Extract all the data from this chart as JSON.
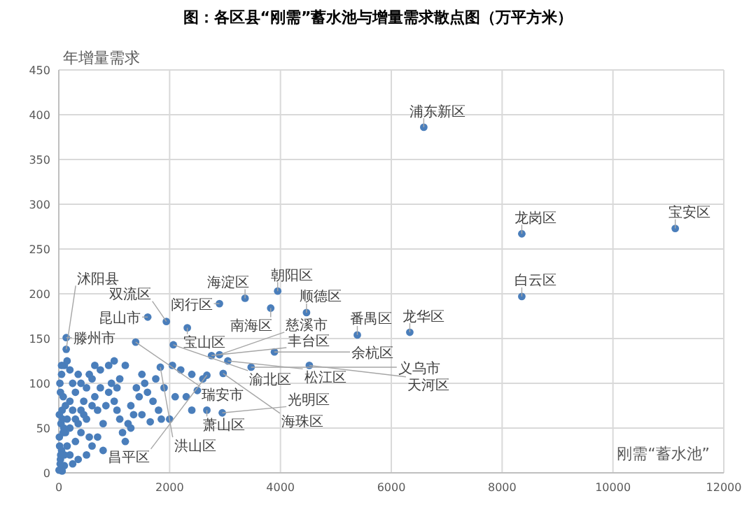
{
  "chart_data": {
    "type": "scatter",
    "title": "图：各区县“刚需”蓄水池与增量需求散点图（万平方米）",
    "xlabel": "刚需“蓄水池”",
    "ylabel": "年增量需求",
    "xlim": [
      0,
      12000
    ],
    "ylim": [
      0,
      450
    ],
    "xticks": [
      0,
      2000,
      4000,
      6000,
      8000,
      10000,
      12000
    ],
    "yticks": [
      0,
      50,
      100,
      150,
      200,
      250,
      300,
      350,
      400,
      450
    ],
    "grid": true,
    "marker": "circle",
    "series": [
      {
        "color": "#4a7ebb",
        "x": [
          6586,
          8355,
          11124,
          8355,
          6334,
          5387,
          4470,
          3824,
          3950,
          3361,
          2899,
          2319,
          1941,
          1605,
          134,
          134,
          1387,
          2067,
          2756,
          2899,
          3050,
          3891,
          2672,
          3471,
          4521,
          2966,
          2672,
          2950,
          1832,
          30,
          50,
          10,
          40,
          60,
          80,
          20,
          50,
          100,
          150,
          30,
          70,
          120,
          150,
          200,
          250,
          100,
          60,
          200,
          250,
          300,
          350,
          400,
          450,
          500,
          550,
          600,
          300,
          350,
          400,
          450,
          500,
          550,
          600,
          650,
          700,
          750,
          800,
          850,
          900,
          950,
          1000,
          1050,
          1100,
          1150,
          1200,
          1250,
          1300,
          1350,
          1400,
          1450,
          1500,
          1550,
          1600,
          1700,
          1800,
          1900,
          2000,
          2100,
          2200,
          2300,
          2400,
          2500,
          2600,
          1650,
          1100,
          1000,
          900,
          1200,
          750,
          650,
          200,
          250,
          150,
          100,
          350,
          500,
          700,
          800,
          1050,
          1300,
          1500,
          1750,
          1850,
          2050,
          2400,
          600,
          400,
          300,
          200,
          50,
          10,
          15,
          25,
          80,
          120,
          5,
          35,
          90
        ],
        "values": [
          386,
          267,
          273,
          197,
          157,
          154,
          179,
          184,
          203,
          195,
          189,
          162,
          169,
          174,
          151,
          138,
          146,
          143,
          131,
          132,
          125,
          135,
          70,
          118,
          120,
          111,
          109,
          67,
          118,
          15,
          25,
          40,
          55,
          70,
          85,
          100,
          110,
          120,
          125,
          90,
          60,
          45,
          30,
          20,
          10,
          8,
          2,
          50,
          70,
          90,
          110,
          100,
          80,
          60,
          40,
          30,
          35,
          55,
          45,
          65,
          95,
          110,
          105,
          85,
          70,
          95,
          55,
          75,
          90,
          100,
          80,
          70,
          60,
          45,
          35,
          55,
          75,
          65,
          95,
          85,
          110,
          100,
          90,
          80,
          70,
          95,
          60,
          85,
          115,
          85,
          110,
          92,
          105,
          57,
          105,
          125,
          120,
          120,
          115,
          120,
          80,
          100,
          60,
          20,
          15,
          20,
          40,
          25,
          95,
          50,
          65,
          105,
          60,
          120,
          70,
          75,
          70,
          60,
          115,
          120,
          65,
          30,
          10,
          45,
          75,
          3,
          20,
          50
        ]
      }
    ],
    "annotations": [
      {
        "text": "浦东新区",
        "x": 6586,
        "y": 386
      },
      {
        "text": "龙岗区",
        "x": 8355,
        "y": 267
      },
      {
        "text": "宝安区",
        "x": 11124,
        "y": 273
      },
      {
        "text": "白云区",
        "x": 8355,
        "y": 197
      },
      {
        "text": "龙华区",
        "x": 6334,
        "y": 157
      },
      {
        "text": "番禺区",
        "x": 5387,
        "y": 154
      },
      {
        "text": "顺德区",
        "x": 4470,
        "y": 179
      },
      {
        "text": "南海区",
        "x": 3824,
        "y": 184
      },
      {
        "text": "朝阳区",
        "x": 3950,
        "y": 203
      },
      {
        "text": "海淀区",
        "x": 3361,
        "y": 195
      },
      {
        "text": "闵行区",
        "x": 2899,
        "y": 189
      },
      {
        "text": "宝山区",
        "x": 2319,
        "y": 162
      },
      {
        "text": "双流区",
        "x": 1941,
        "y": 169
      },
      {
        "text": "昆山市",
        "x": 1605,
        "y": 174
      },
      {
        "text": "滕州市",
        "x": 134,
        "y": 151
      },
      {
        "text": "沭阳县",
        "x": 134,
        "y": 138
      },
      {
        "text": "瑞安市",
        "x": 1387,
        "y": 146
      },
      {
        "text": "渝北区",
        "x": 2067,
        "y": 143
      },
      {
        "text": "丰台区",
        "x": 2756,
        "y": 131
      },
      {
        "text": "慈溪市",
        "x": 2899,
        "y": 132
      },
      {
        "text": "松江区",
        "x": 3050,
        "y": 125
      },
      {
        "text": "余杭区",
        "x": 3891,
        "y": 135
      },
      {
        "text": "萧山区",
        "x": 2672,
        "y": 70
      },
      {
        "text": "义乌市",
        "x": 3471,
        "y": 118
      },
      {
        "text": "天河区",
        "x": 4521,
        "y": 120
      },
      {
        "text": "海珠区",
        "x": 2966,
        "y": 111
      },
      {
        "text": "昌平区",
        "x": 2672,
        "y": 109
      },
      {
        "text": "光明区",
        "x": 2950,
        "y": 67
      },
      {
        "text": "洪山区",
        "x": 1832,
        "y": 118
      }
    ]
  }
}
